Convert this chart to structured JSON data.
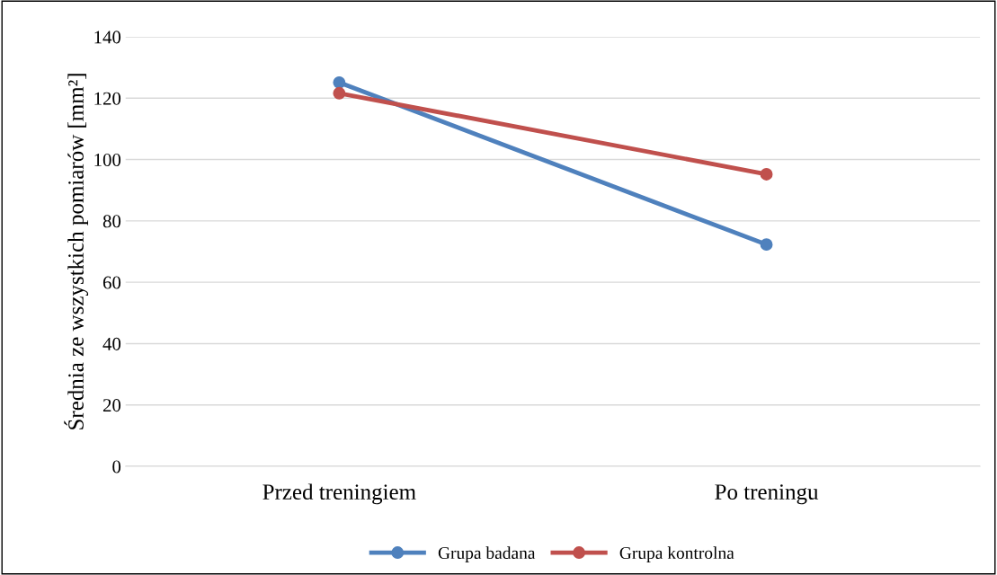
{
  "chart_data": {
    "type": "line",
    "ylabel": "Średnia ze wszystkich pomiarów [mm²]",
    "categories": [
      "Przed treningiem",
      "Po treningu"
    ],
    "series": [
      {
        "name": "Grupa badana",
        "color": "#4f81bd",
        "values": [
          125.1,
          72.3
        ]
      },
      {
        "name": "Grupa kontrolna",
        "color": "#c0504d",
        "values": [
          121.6,
          95.2
        ]
      }
    ],
    "ylim": [
      0,
      140
    ],
    "yticks": [
      0,
      20,
      40,
      60,
      80,
      100,
      120,
      140
    ],
    "grid": "y",
    "legend": "bottom",
    "marker": "circle",
    "line_style": "solid"
  }
}
